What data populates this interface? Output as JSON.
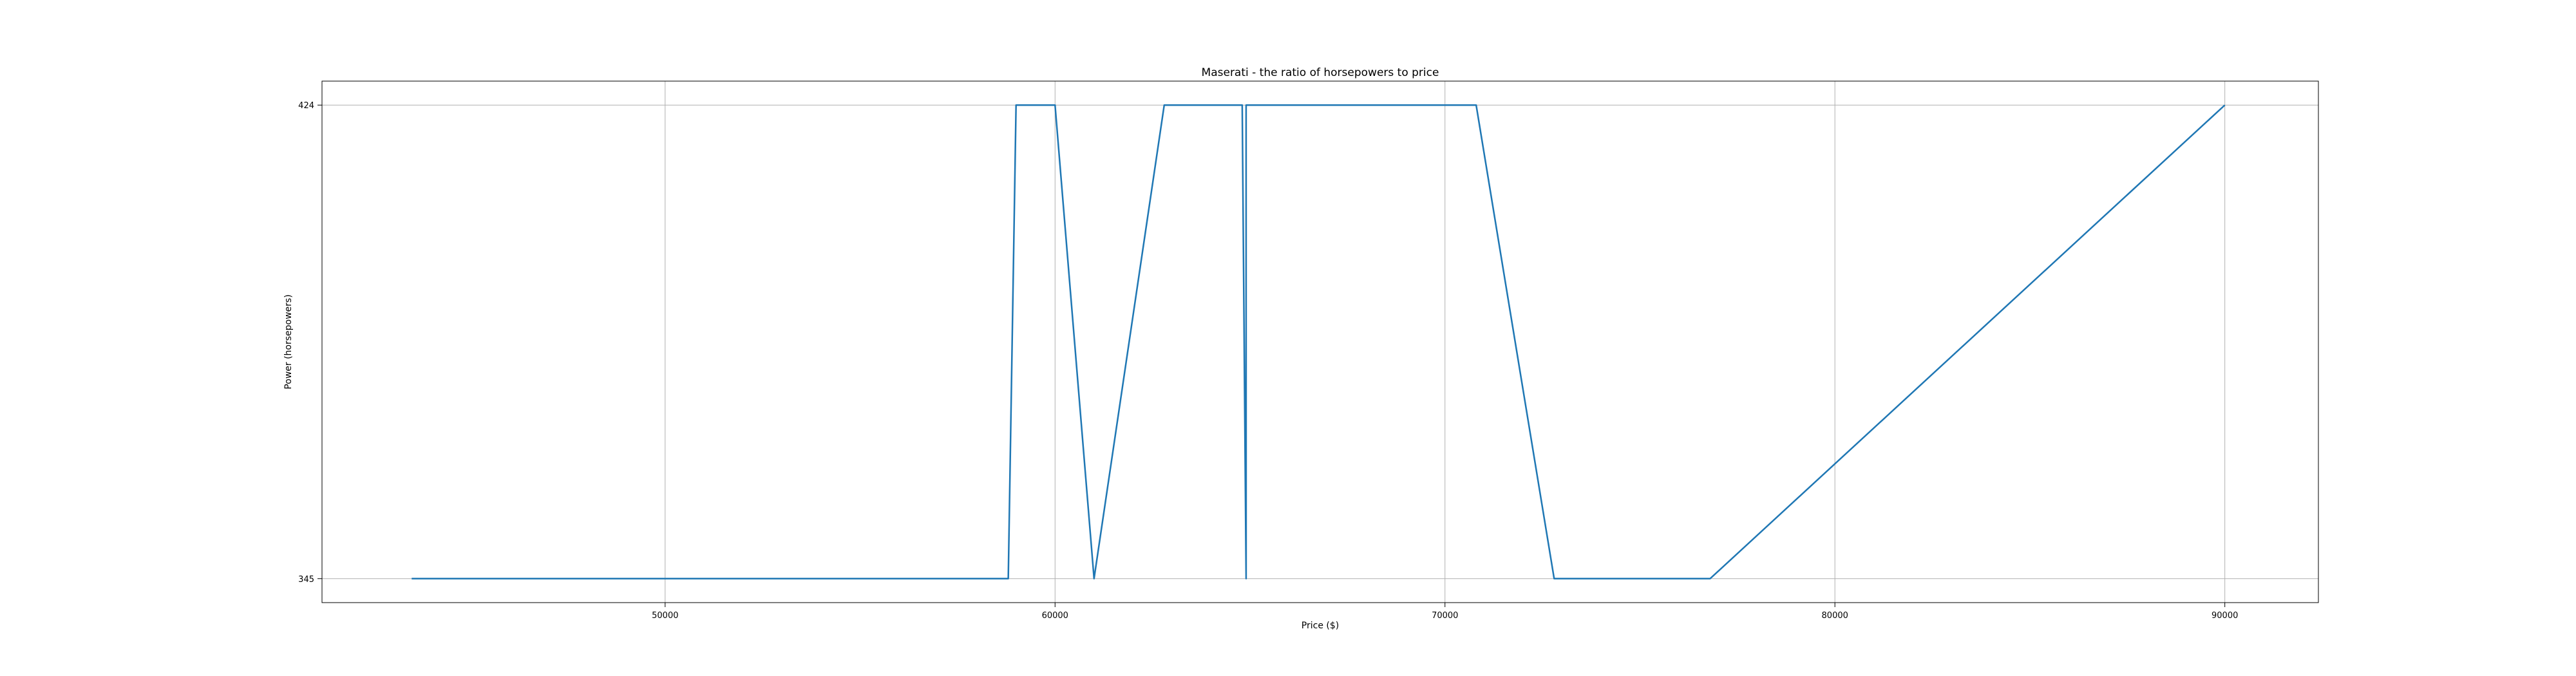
{
  "chart_data": {
    "type": "line",
    "title": "Maserati - the ratio of horsepowers to price",
    "xlabel": "Price ($)",
    "ylabel": "Power (horsepowers)",
    "xlim": [
      41200,
      92400
    ],
    "ylim": [
      341,
      428
    ],
    "xticks": [
      50000,
      60000,
      70000,
      80000,
      90000
    ],
    "yticks": [
      345,
      424
    ],
    "grid": true,
    "series": [
      {
        "color": "#1f77b4",
        "x": [
          43500,
          58800,
          59000,
          60000,
          61000,
          62800,
          64800,
          64900,
          64900,
          70800,
          72800,
          76800,
          90000
        ],
        "y": [
          345,
          345,
          424,
          424,
          345,
          424,
          424,
          345,
          424,
          424,
          345,
          345,
          424
        ]
      }
    ]
  }
}
